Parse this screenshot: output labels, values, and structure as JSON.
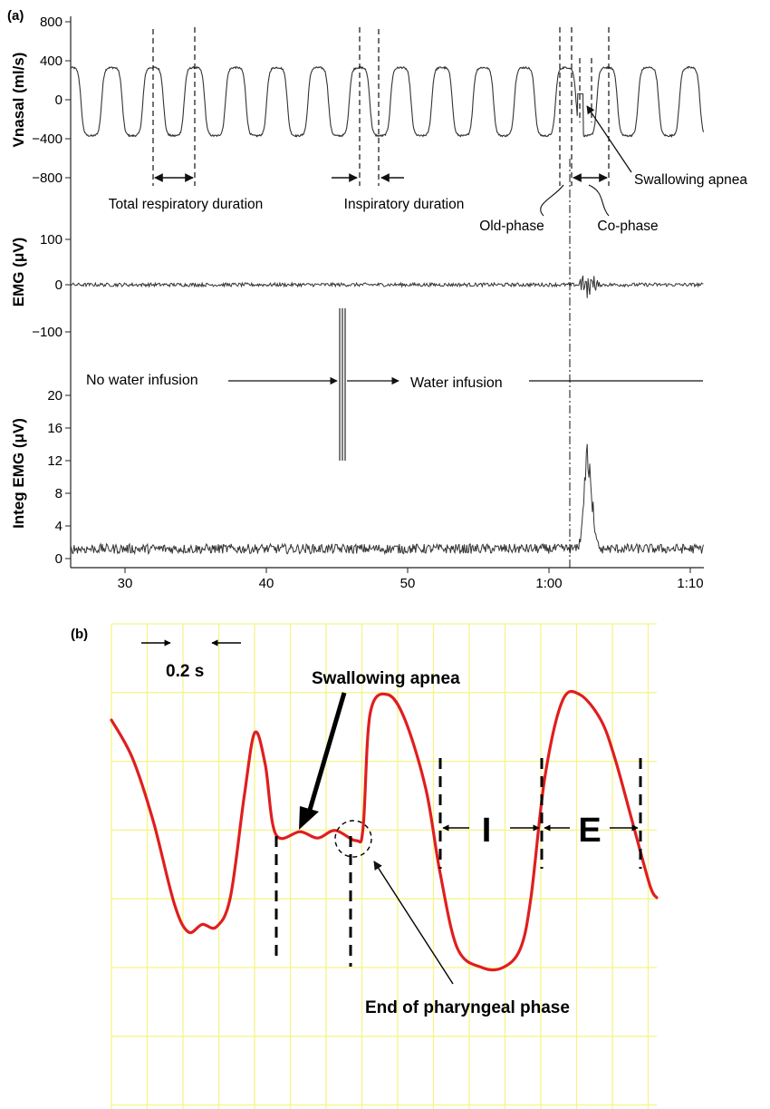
{
  "chart_data": [
    {
      "panel": "(a)",
      "type": "line",
      "x_ticks": [
        "30",
        "40",
        "50",
        "1:00",
        "1:10"
      ],
      "x_tick_seconds": [
        30,
        40,
        50,
        60,
        70
      ],
      "xlim_seconds": [
        26,
        70.5
      ],
      "subplots": [
        {
          "ylabel": "Vnasal (ml/s)",
          "yticks": [
            "800",
            "400",
            "0",
            "−400",
            "−800"
          ],
          "ytick_values": [
            800,
            400,
            0,
            -400,
            -800
          ],
          "ylim": [
            -900,
            850
          ],
          "series": {
            "pattern": "breathing",
            "cycle_seconds": 2.9,
            "high": 330,
            "low": -370,
            "start_seconds": 26,
            "end_seconds": 70.5,
            "apnea_seconds": [
              61.6,
              62.0
            ]
          }
        },
        {
          "ylabel": "EMG (μV)",
          "yticks": [
            "100",
            "0",
            "−100"
          ],
          "ytick_values": [
            100,
            0,
            -100
          ],
          "ylim": [
            -130,
            120
          ],
          "series": {
            "pattern": "noise",
            "baseline": 0,
            "noise": 4,
            "burst_seconds": [
              61.6,
              63.2
            ],
            "burst_peak": 35
          }
        },
        {
          "ylabel": "Integ EMG (μV)",
          "yticks": [
            "20",
            "16",
            "12",
            "8",
            "4",
            "0"
          ],
          "ytick_values": [
            20,
            16,
            12,
            8,
            4,
            0
          ],
          "ylim": [
            -0.5,
            22
          ],
          "series": {
            "pattern": "noise",
            "baseline": 1.2,
            "noise": 0.6,
            "burst_seconds": [
              61.6,
              63.3
            ],
            "burst_peak": 14
          }
        }
      ],
      "annotations": {
        "total_respiratory_duration": "Total respiratory duration",
        "inspiratory_duration": "Inspiratory duration",
        "old_phase": "Old-phase",
        "co_phase": "Co-phase",
        "swallowing_apnea": "Swallowing apnea",
        "no_water_infusion": "No water infusion",
        "water_infusion": "Water infusion"
      }
    },
    {
      "panel": "(b)",
      "type": "line",
      "grid": true,
      "grid_color": "#f4f48c",
      "line_color": "#e01e1e",
      "time_scale_label": "0.2 s",
      "trace_points": [
        [
          0.0,
          0.85
        ],
        [
          0.3,
          0.55
        ],
        [
          0.6,
          0.05
        ],
        [
          0.9,
          -0.6
        ],
        [
          1.1,
          -0.82
        ],
        [
          1.3,
          -0.76
        ],
        [
          1.5,
          -0.78
        ],
        [
          1.7,
          -0.55
        ],
        [
          1.9,
          0.25
        ],
        [
          2.05,
          0.75
        ],
        [
          2.2,
          0.5
        ],
        [
          2.35,
          -0.05
        ],
        [
          2.7,
          -0.03
        ],
        [
          2.95,
          -0.08
        ],
        [
          3.2,
          -0.02
        ],
        [
          3.5,
          -0.1
        ],
        [
          3.6,
          0.0
        ],
        [
          3.7,
          0.9
        ],
        [
          3.95,
          1.05
        ],
        [
          4.2,
          0.85
        ],
        [
          4.5,
          0.3
        ],
        [
          4.7,
          -0.35
        ],
        [
          4.95,
          -0.95
        ],
        [
          5.3,
          -1.1
        ],
        [
          5.6,
          -1.1
        ],
        [
          5.85,
          -0.95
        ],
        [
          6.0,
          -0.55
        ],
        [
          6.2,
          0.4
        ],
        [
          6.45,
          1.0
        ],
        [
          6.7,
          1.05
        ],
        [
          7.0,
          0.85
        ],
        [
          7.2,
          0.55
        ],
        [
          7.45,
          0.05
        ],
        [
          7.7,
          -0.45
        ],
        [
          7.8,
          -0.55
        ]
      ],
      "markers": [
        2.35,
        3.6
      ],
      "I_boundaries": [
        4.65,
        6.15
      ],
      "E_boundaries": [
        6.15,
        7.45
      ],
      "labels": {
        "swallowing_apnea": "Swallowing apnea",
        "end_pharyngeal": "End of pharyngeal phase",
        "I": "I",
        "E": "E"
      }
    }
  ]
}
